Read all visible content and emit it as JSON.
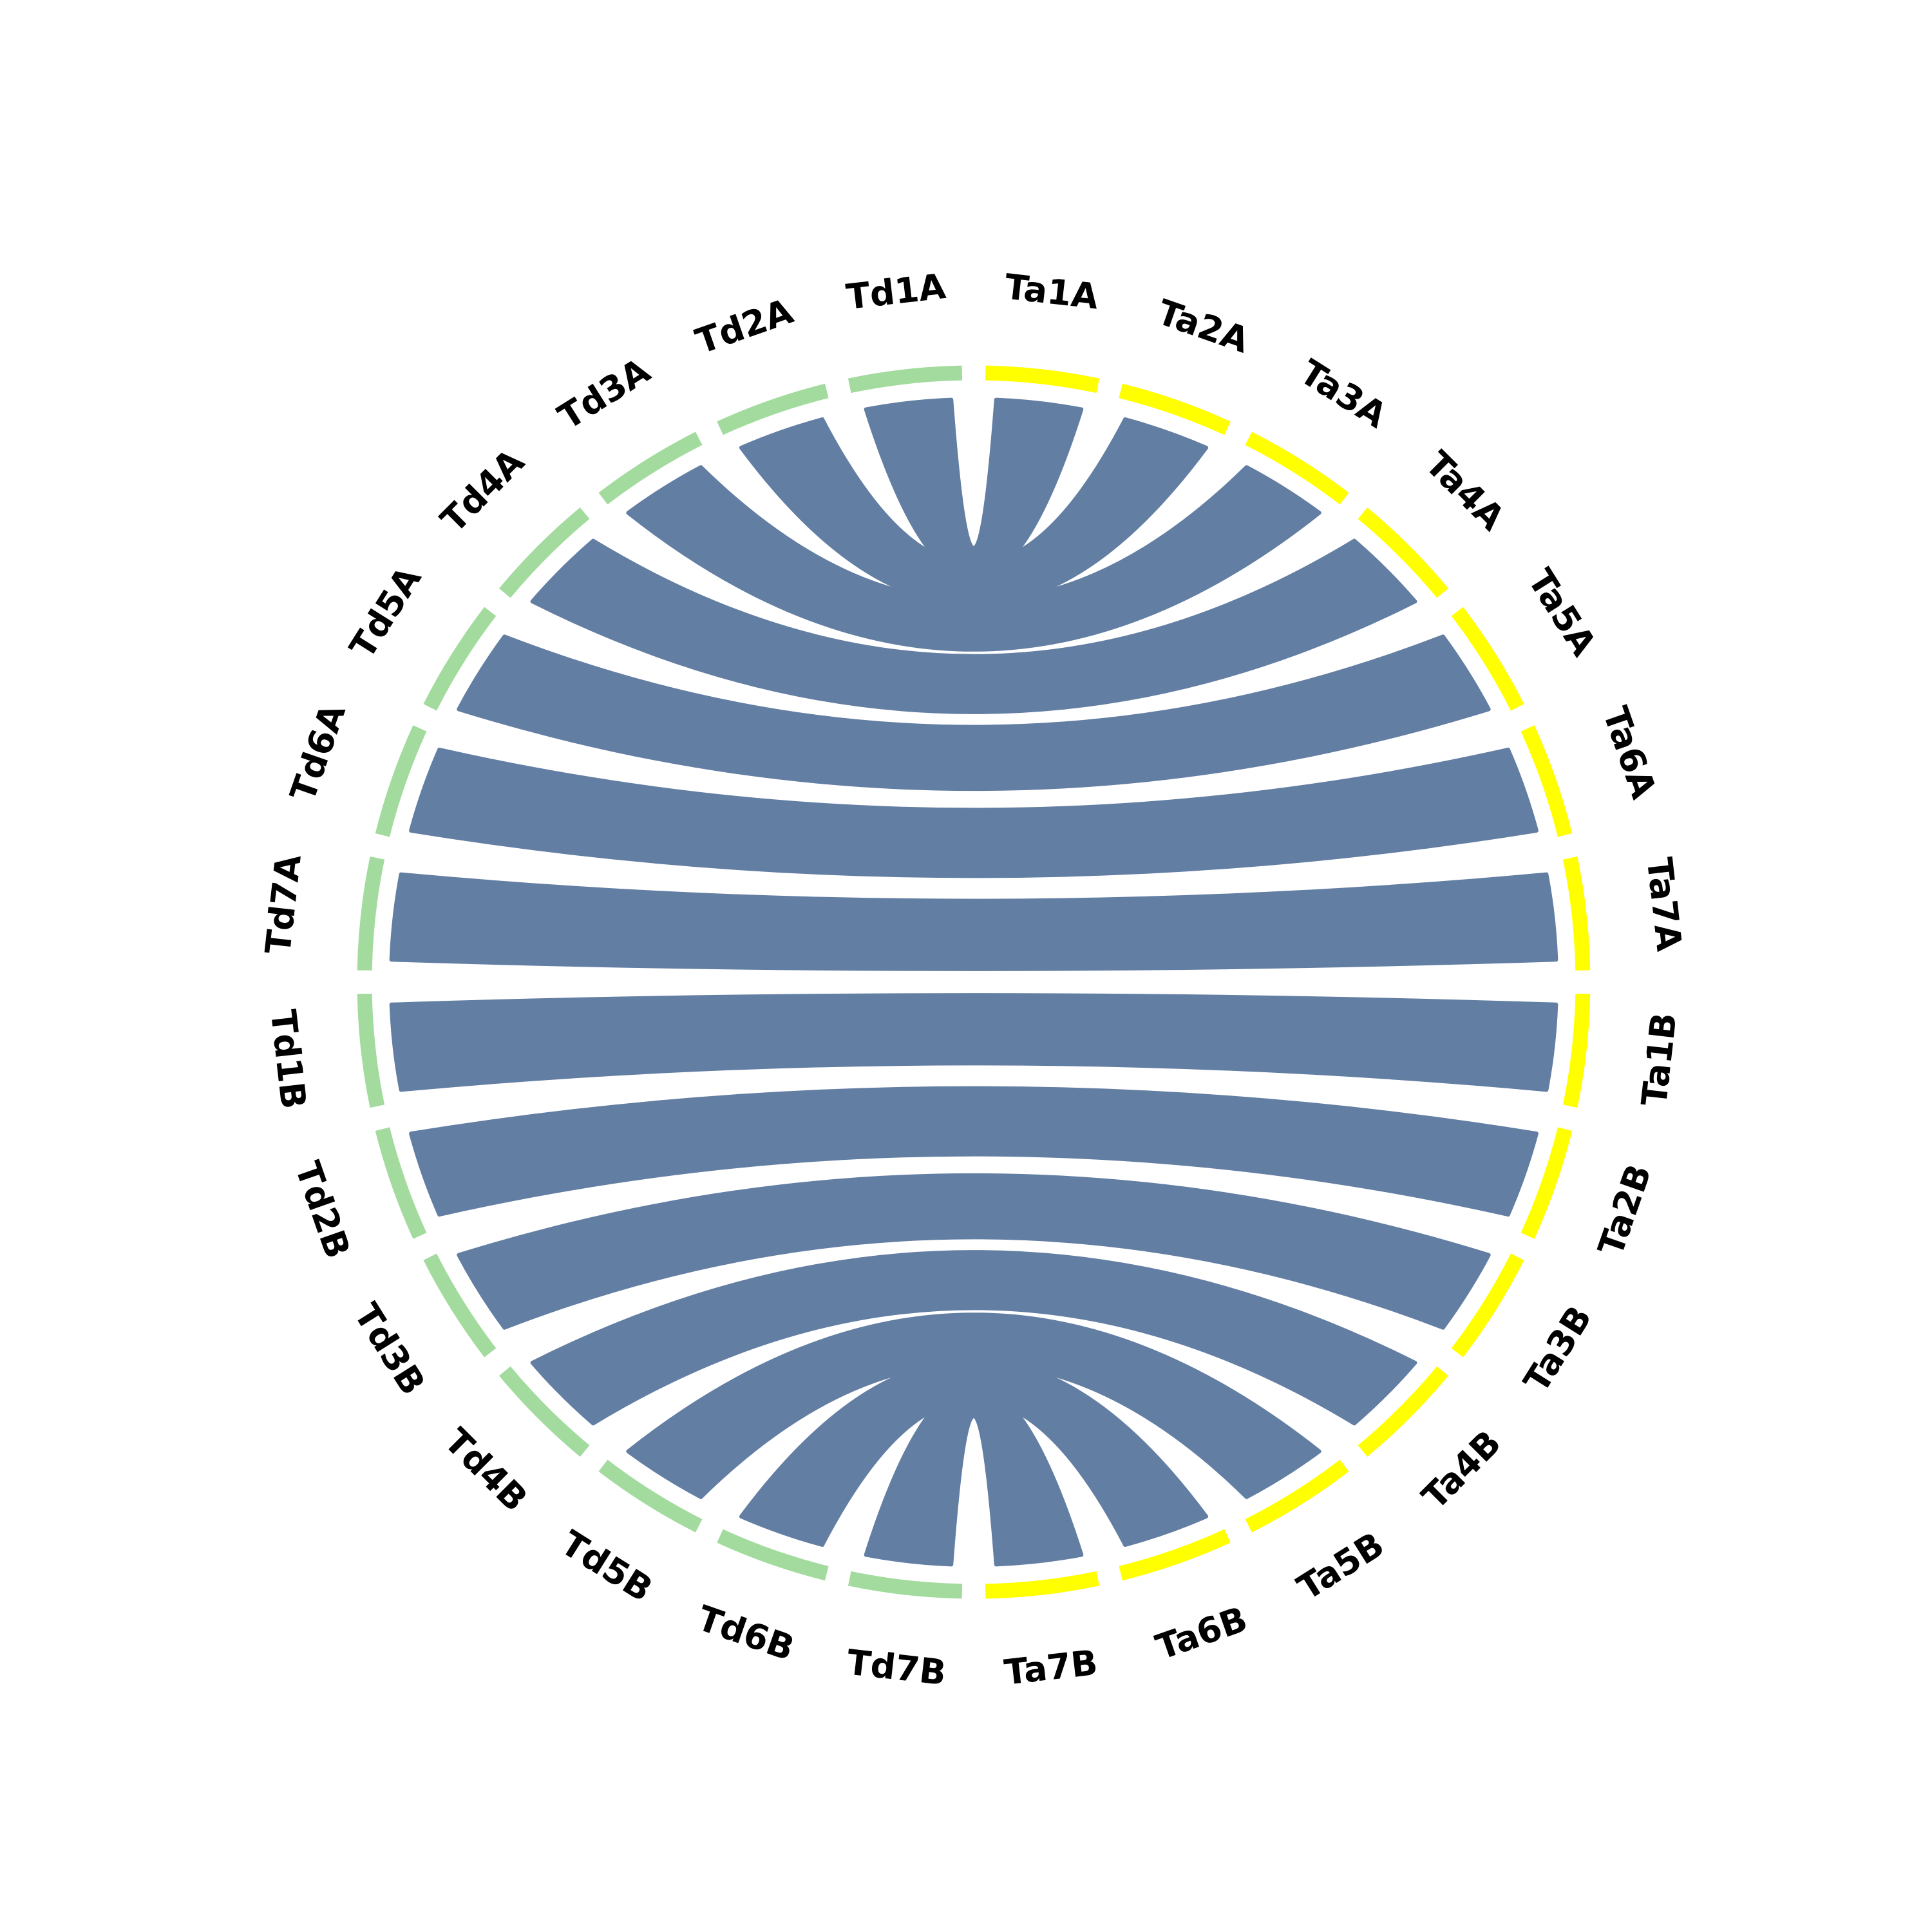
{
  "nodes": [
    {
      "label": "Ta1A",
      "color": "#ffff00"
    },
    {
      "label": "Ta2A",
      "color": "#ffff00"
    },
    {
      "label": "Ta3A",
      "color": "#ffff00"
    },
    {
      "label": "Ta4A",
      "color": "#ffff00"
    },
    {
      "label": "Ta5A",
      "color": "#ffff00"
    },
    {
      "label": "Ta6A",
      "color": "#ffff00"
    },
    {
      "label": "Ta7A",
      "color": "#ffff00"
    },
    {
      "label": "Ta1B",
      "color": "#ffff00"
    },
    {
      "label": "Ta2B",
      "color": "#ffff00"
    },
    {
      "label": "Ta3B",
      "color": "#ffff00"
    },
    {
      "label": "Ta4B",
      "color": "#ffff00"
    },
    {
      "label": "Ta5B",
      "color": "#ffff00"
    },
    {
      "label": "Ta6B",
      "color": "#ffff00"
    },
    {
      "label": "Ta7B",
      "color": "#ffff00"
    },
    {
      "label": "Td7B",
      "color": "#a3db9e"
    },
    {
      "label": "Td6B",
      "color": "#a3db9e"
    },
    {
      "label": "Td5B",
      "color": "#a3db9e"
    },
    {
      "label": "Td4B",
      "color": "#a3db9e"
    },
    {
      "label": "Td3B",
      "color": "#a3db9e"
    },
    {
      "label": "Td2B",
      "color": "#a3db9e"
    },
    {
      "label": "Td1B",
      "color": "#a3db9e"
    },
    {
      "label": "Td7A",
      "color": "#a3db9e"
    },
    {
      "label": "Td6A",
      "color": "#a3db9e"
    },
    {
      "label": "Td5A",
      "color": "#a3db9e"
    },
    {
      "label": "Td4A",
      "color": "#a3db9e"
    },
    {
      "label": "Td3A",
      "color": "#a3db9e"
    },
    {
      "label": "Td2A",
      "color": "#a3db9e"
    },
    {
      "label": "Td1A",
      "color": "#a3db9e"
    }
  ],
  "ribbon_color": "#637ea3"
}
